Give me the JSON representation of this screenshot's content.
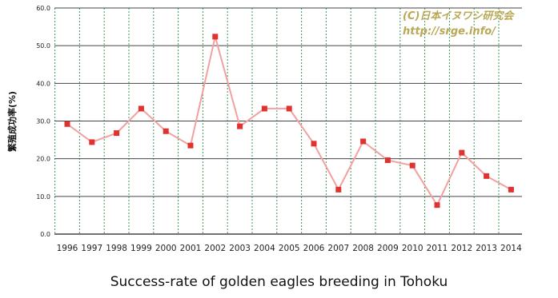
{
  "chart_data": {
    "type": "line",
    "ylabel": "繁殖成功率(%)",
    "ylim": [
      0,
      60
    ],
    "yticks": [
      "0.0",
      "10.0",
      "20.0",
      "30.0",
      "40.0",
      "50.0",
      "60.0"
    ],
    "x": [
      "1996",
      "1997",
      "1998",
      "1999",
      "2000",
      "2001",
      "2002",
      "2003",
      "2004",
      "2005",
      "2006",
      "2007",
      "2008",
      "2009",
      "2010",
      "2011",
      "2012",
      "2013",
      "2014"
    ],
    "series": [
      {
        "values": [
          29.2,
          24.4,
          26.8,
          33.3,
          27.3,
          23.5,
          52.4,
          28.6,
          33.3,
          33.3,
          24.0,
          11.8,
          24.6,
          19.6,
          18.2,
          7.7,
          21.6,
          15.4,
          11.8
        ]
      }
    ],
    "grid": true,
    "colors": {
      "line": "#f2a0a0",
      "marker": "#e0322f",
      "grid_h": "#444444",
      "grid_v": "#3a9a5a"
    }
  },
  "watermark": {
    "line1": "(C)日本イヌワシ研究会",
    "line2": "http://srge.info/"
  },
  "caption": "Success-rate of golden eagles breeding in Tohoku"
}
